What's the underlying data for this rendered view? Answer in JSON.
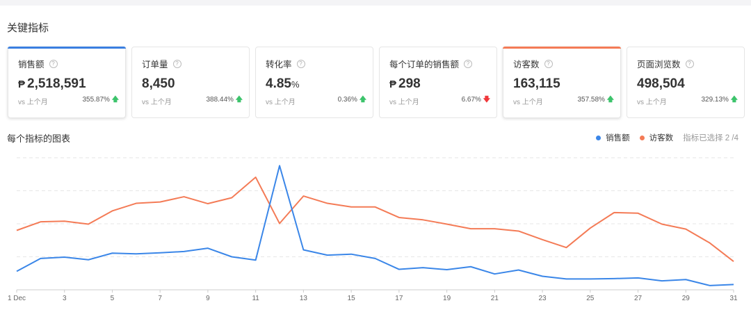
{
  "title": "关键指标",
  "cards": [
    {
      "name": "销售额",
      "currency": "₱",
      "value": "2,518,591",
      "unit": "",
      "compare": "vs 上个月",
      "change": "355.87%",
      "trend": "up",
      "selected": true,
      "accent": "#3a7fe0"
    },
    {
      "name": "订单量",
      "currency": "",
      "value": "8,450",
      "unit": "",
      "compare": "vs 上个月",
      "change": "388.44%",
      "trend": "up",
      "selected": false,
      "accent": ""
    },
    {
      "name": "转化率",
      "currency": "",
      "value": "4.85",
      "unit": "%",
      "compare": "vs 上个月",
      "change": "0.36%",
      "trend": "up",
      "selected": false,
      "accent": ""
    },
    {
      "name": "每个订单的销售额",
      "currency": "₱",
      "value": "298",
      "unit": "",
      "compare": "vs 上个月",
      "change": "6.67%",
      "trend": "down",
      "selected": false,
      "accent": ""
    },
    {
      "name": "访客数",
      "currency": "",
      "value": "163,115",
      "unit": "",
      "compare": "vs 上个月",
      "change": "357.58%",
      "trend": "up",
      "selected": true,
      "accent": "#f47b56"
    },
    {
      "name": "页面浏览数",
      "currency": "",
      "value": "498,504",
      "unit": "",
      "compare": "vs 上个月",
      "change": "329.13%",
      "trend": "up",
      "selected": false,
      "accent": ""
    }
  ],
  "chart_section": {
    "title": "每个指标的图表",
    "selected_text": "指标已选择 2 /4"
  },
  "chart_data": {
    "type": "line",
    "x": [
      1,
      2,
      3,
      4,
      5,
      6,
      7,
      8,
      9,
      10,
      11,
      12,
      13,
      14,
      15,
      16,
      17,
      18,
      19,
      20,
      21,
      22,
      23,
      24,
      25,
      26,
      27,
      28,
      29,
      30,
      31
    ],
    "x_tick_labels": [
      "1 Dec",
      "3",
      "5",
      "7",
      "9",
      "11",
      "13",
      "15",
      "17",
      "19",
      "21",
      "23",
      "25",
      "27",
      "29",
      "31"
    ],
    "y_axis_labels": "none (relative scale, 4 dashed gridlines)",
    "ylim": [
      0,
      4
    ],
    "grid": true,
    "legend": "top-right",
    "series": [
      {
        "name": "销售额",
        "color": "#3a86e8",
        "values": [
          0.56,
          0.95,
          0.99,
          0.91,
          1.11,
          1.09,
          1.12,
          1.16,
          1.26,
          1.0,
          0.9,
          3.76,
          1.21,
          1.05,
          1.08,
          0.95,
          0.62,
          0.67,
          0.61,
          0.7,
          0.48,
          0.6,
          0.41,
          0.33,
          0.33,
          0.34,
          0.36,
          0.27,
          0.31,
          0.13,
          0.16
        ]
      },
      {
        "name": "访客数",
        "color": "#f47b56",
        "values": [
          1.8,
          2.06,
          2.08,
          1.99,
          2.39,
          2.62,
          2.66,
          2.82,
          2.61,
          2.79,
          3.41,
          2.01,
          2.84,
          2.62,
          2.51,
          2.51,
          2.19,
          2.12,
          1.99,
          1.85,
          1.85,
          1.78,
          1.52,
          1.28,
          1.87,
          2.34,
          2.32,
          1.99,
          1.84,
          1.42,
          0.86
        ]
      }
    ]
  }
}
